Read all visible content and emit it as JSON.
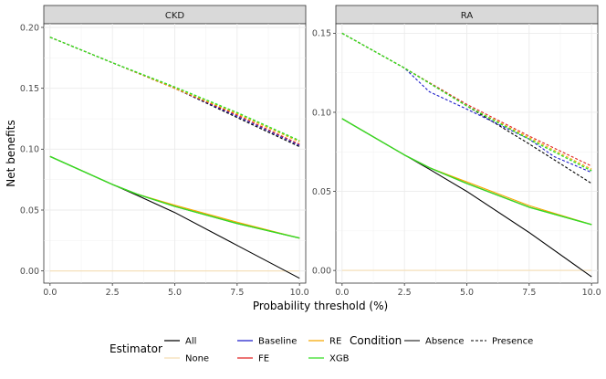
{
  "chart_data": {
    "type": "line",
    "xlabel": "Probability threshold (%)",
    "ylabel": "Net benefits",
    "x_ticks": [
      "0.0",
      "2.5",
      "5.0",
      "7.5",
      "10.0"
    ],
    "colors": {
      "All": "#000000",
      "None": "#f5deb3",
      "Baseline": "#1c1cc9",
      "FE": "#e02020",
      "RE": "#f5a800",
      "XGB": "#33dd22"
    },
    "legend": {
      "estimator_title": "Estimator",
      "estimator_items": [
        "All",
        "None",
        "Baseline",
        "FE",
        "RE",
        "XGB"
      ],
      "condition_title": "Condition",
      "condition_items": [
        "Absence",
        "Presence"
      ]
    },
    "panels": [
      {
        "title": "CKD",
        "xlim": [
          -0.25,
          10.25
        ],
        "ylim": [
          -0.01,
          0.203
        ],
        "y_ticks": [
          "0.00",
          "0.05",
          "0.10",
          "0.15",
          "0.20"
        ],
        "y_tick_values": [
          0,
          0.05,
          0.1,
          0.15,
          0.2
        ],
        "series": [
          {
            "estimator": "None",
            "condition": "Absence",
            "x": [
              0,
              10
            ],
            "y": [
              0,
              0
            ]
          },
          {
            "estimator": "All",
            "condition": "Absence",
            "x": [
              0,
              2.5,
              3.5,
              5,
              7.5,
              10
            ],
            "y": [
              0.094,
              0.071,
              0.062,
              0.048,
              0.021,
              -0.006
            ]
          },
          {
            "estimator": "Baseline",
            "condition": "Absence",
            "x": [
              0,
              2.5,
              3.5,
              5,
              7.5,
              10
            ],
            "y": [
              0.094,
              0.071,
              0.063,
              0.053,
              0.039,
              0.027
            ]
          },
          {
            "estimator": "FE",
            "condition": "Absence",
            "x": [
              0,
              2.5,
              3.5,
              5,
              7.5,
              10
            ],
            "y": [
              0.094,
              0.071,
              0.063,
              0.053,
              0.039,
              0.027
            ]
          },
          {
            "estimator": "RE",
            "condition": "Absence",
            "x": [
              0,
              2.5,
              3.5,
              5,
              7.5,
              10
            ],
            "y": [
              0.094,
              0.071,
              0.063,
              0.054,
              0.04,
              0.027
            ]
          },
          {
            "estimator": "XGB",
            "condition": "Absence",
            "x": [
              0,
              2.5,
              3.5,
              5,
              7.5,
              10
            ],
            "y": [
              0.094,
              0.071,
              0.063,
              0.053,
              0.039,
              0.027
            ]
          },
          {
            "estimator": "All",
            "condition": "Presence",
            "x": [
              0,
              2.5,
              5,
              7.5,
              10
            ],
            "y": [
              0.192,
              0.171,
              0.15,
              0.126,
              0.102
            ]
          },
          {
            "estimator": "Baseline",
            "condition": "Presence",
            "x": [
              0,
              2.5,
              5,
              7.5,
              10
            ],
            "y": [
              0.192,
              0.171,
              0.15,
              0.127,
              0.103
            ]
          },
          {
            "estimator": "FE",
            "condition": "Presence",
            "x": [
              0,
              2.5,
              5,
              7.5,
              10
            ],
            "y": [
              0.192,
              0.171,
              0.15,
              0.128,
              0.104
            ]
          },
          {
            "estimator": "RE",
            "condition": "Presence",
            "x": [
              0,
              2.5,
              5,
              7.5,
              10
            ],
            "y": [
              0.192,
              0.171,
              0.15,
              0.129,
              0.106
            ]
          },
          {
            "estimator": "XGB",
            "condition": "Presence",
            "x": [
              0,
              2.5,
              5,
              7.5,
              10
            ],
            "y": [
              0.192,
              0.171,
              0.151,
              0.13,
              0.107
            ]
          }
        ]
      },
      {
        "title": "RA",
        "xlim": [
          -0.25,
          10.25
        ],
        "ylim": [
          -0.008,
          0.156
        ],
        "y_ticks": [
          "0.00",
          "0.05",
          "0.10",
          "0.15"
        ],
        "y_tick_values": [
          0,
          0.05,
          0.1,
          0.15
        ],
        "series": [
          {
            "estimator": "None",
            "condition": "Absence",
            "x": [
              0,
              10
            ],
            "y": [
              0,
              0
            ]
          },
          {
            "estimator": "All",
            "condition": "Absence",
            "x": [
              0,
              2.5,
              3.5,
              5,
              7.5,
              10
            ],
            "y": [
              0.096,
              0.073,
              0.064,
              0.05,
              0.024,
              -0.004
            ]
          },
          {
            "estimator": "Baseline",
            "condition": "Absence",
            "x": [
              0,
              2.5,
              3.5,
              5,
              7.5,
              10
            ],
            "y": [
              0.096,
              0.073,
              0.065,
              0.055,
              0.04,
              0.029
            ]
          },
          {
            "estimator": "FE",
            "condition": "Absence",
            "x": [
              0,
              2.5,
              3.5,
              5,
              7.5,
              10
            ],
            "y": [
              0.096,
              0.073,
              0.065,
              0.055,
              0.04,
              0.029
            ]
          },
          {
            "estimator": "RE",
            "condition": "Absence",
            "x": [
              0,
              2.5,
              3.5,
              5,
              7.5,
              10
            ],
            "y": [
              0.096,
              0.073,
              0.065,
              0.056,
              0.041,
              0.029
            ]
          },
          {
            "estimator": "XGB",
            "condition": "Absence",
            "x": [
              0,
              2.5,
              3.5,
              5,
              7.5,
              10
            ],
            "y": [
              0.096,
              0.073,
              0.065,
              0.055,
              0.04,
              0.029
            ]
          },
          {
            "estimator": "All",
            "condition": "Presence",
            "x": [
              0,
              2.5,
              5,
              7.5,
              10
            ],
            "y": [
              0.15,
              0.128,
              0.104,
              0.08,
              0.055
            ]
          },
          {
            "estimator": "Baseline",
            "condition": "Presence",
            "x": [
              0,
              2.5,
              3.5,
              5,
              7.5,
              8.5,
              10
            ],
            "y": [
              0.15,
              0.128,
              0.113,
              0.102,
              0.083,
              0.072,
              0.062
            ]
          },
          {
            "estimator": "FE",
            "condition": "Presence",
            "x": [
              0,
              2.5,
              5,
              7.5,
              10
            ],
            "y": [
              0.15,
              0.128,
              0.105,
              0.085,
              0.066
            ]
          },
          {
            "estimator": "RE",
            "condition": "Presence",
            "x": [
              0,
              2.5,
              5,
              7.5,
              10
            ],
            "y": [
              0.15,
              0.128,
              0.104,
              0.084,
              0.064
            ]
          },
          {
            "estimator": "XGB",
            "condition": "Presence",
            "x": [
              0,
              2.5,
              5,
              7.5,
              10
            ],
            "y": [
              0.15,
              0.128,
              0.104,
              0.083,
              0.063
            ]
          }
        ]
      }
    ]
  }
}
